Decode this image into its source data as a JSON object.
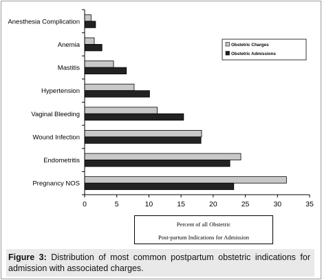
{
  "chart_data": {
    "type": "bar",
    "orientation": "horizontal",
    "categories": [
      "Anesthesia Complication",
      "Anemia",
      "Mastitis",
      "Hypertension",
      "Vaginal Bleeding",
      "Wound Infection",
      "Endometritis",
      "Pregnancy NOS"
    ],
    "series": [
      {
        "name": "Obstetric Charges",
        "values": [
          1.0,
          1.5,
          4.5,
          7.7,
          11.3,
          18.2,
          24.3,
          31.4
        ],
        "color": "#c8c8c8"
      },
      {
        "name": "Obstetric Admissions",
        "values": [
          1.7,
          2.7,
          6.5,
          10.1,
          15.4,
          18.1,
          22.6,
          23.2
        ],
        "color": "#222222"
      }
    ],
    "xlabel_lines": [
      "Percent of all Obstetric",
      "Post-partum Indications for Admission"
    ],
    "xlim": [
      0,
      35
    ],
    "xticks": [
      0,
      5,
      10,
      15,
      20,
      25,
      30,
      35
    ],
    "grid": false,
    "legend_position": "top-right"
  },
  "caption": {
    "label": "Figure 3:",
    "text": " Distribution of most common postpartum obstetric indications for admission with associated charges."
  }
}
